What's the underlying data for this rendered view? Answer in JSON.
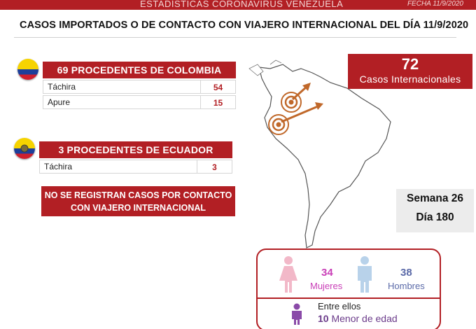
{
  "header": {
    "title": "ESTADÍSTICAS CORONAVIRUS VENEZUELA",
    "date": "FECHA 11/9/2020"
  },
  "main_title": "CASOS IMPORTADOS O DE CONTACTO CON VIAJERO INTERNACIONAL DEL DÍA  11/9/2020",
  "colombia": {
    "heading": "69 PROCEDENTES DE COLOMBIA",
    "rows": [
      {
        "state": "Táchira",
        "count": "54"
      },
      {
        "state": "Apure",
        "count": "15"
      }
    ]
  },
  "ecuador": {
    "heading": "3 PROCEDENTES DE ECUADOR",
    "rows": [
      {
        "state": "Táchira",
        "count": "3"
      }
    ]
  },
  "notice": {
    "line1": "NO SE REGISTRAN CASOS POR CONTACTO",
    "line2": "CON VIAJERO INTERNACIONAL"
  },
  "total": {
    "count": "72",
    "label": "Casos Internacionales"
  },
  "period": {
    "week": "Semana 26",
    "day": "Día 180"
  },
  "gender": {
    "women_count": "34",
    "women_label": "Mujeres",
    "men_count": "38",
    "men_label": "Hombres",
    "minor_prefix": "Entre ellos",
    "minor_count": "10",
    "minor_label": "Menor de edad"
  },
  "colors": {
    "accent_red": "#b21f24",
    "women": "#c93fb7",
    "men": "#5b6aa8",
    "minor": "#6b3b8a",
    "arrow": "#c0682a"
  },
  "icons": {
    "colombia_flag": "colombia-flag-icon",
    "ecuador_flag": "ecuador-flag-icon",
    "woman": "woman-icon",
    "man": "man-icon",
    "child": "child-icon"
  }
}
